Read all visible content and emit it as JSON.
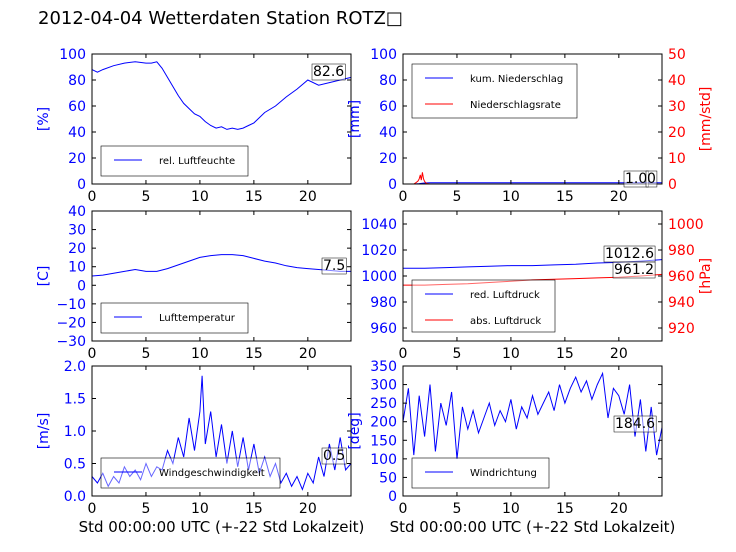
{
  "title": "2012-04-04 Wetterdaten Station ROTZ□",
  "colors": {
    "primary": "#0000ff",
    "secondary": "#ff0000",
    "axis": "#000000",
    "background": "#ffffff"
  },
  "chart_data": [
    {
      "type": "line",
      "xlabel": "",
      "ylabel": "[%]",
      "xlim": [
        0,
        24
      ],
      "ylim": [
        0,
        100
      ],
      "xticks": [
        0,
        5,
        10,
        15,
        20
      ],
      "yticks": [
        0,
        20,
        40,
        60,
        80,
        100
      ],
      "grid": false,
      "legend_position": "lower-left",
      "series": [
        {
          "name": "rel. Luftfeuchte",
          "color": "#0000ff",
          "x": [
            0,
            0.5,
            1,
            2,
            3,
            4,
            5,
            5.5,
            6,
            6.5,
            7,
            7.5,
            8,
            8.5,
            9,
            9.5,
            10,
            10.5,
            11,
            11.5,
            12,
            12.5,
            13,
            13.5,
            14,
            14.5,
            15,
            16,
            17,
            18,
            19,
            20,
            21,
            22,
            23,
            24
          ],
          "y": [
            88,
            86,
            88,
            91,
            93,
            94,
            93,
            93,
            94,
            89,
            82,
            75,
            68,
            62,
            58,
            54,
            52,
            48,
            45,
            43,
            44,
            42,
            43,
            42,
            43,
            45,
            47,
            55,
            60,
            67,
            73,
            80,
            76,
            78,
            80,
            82
          ]
        }
      ],
      "annotation": "82.6"
    },
    {
      "type": "line",
      "xlabel": "",
      "ylabel": "[mm]",
      "ylabel_right": "[mm/std]",
      "xlim": [
        0,
        24
      ],
      "ylim": [
        0,
        100
      ],
      "ylim_right": [
        0,
        50
      ],
      "xticks": [
        0,
        5,
        10,
        15,
        20
      ],
      "yticks": [
        0,
        20,
        40,
        60,
        80,
        100
      ],
      "yticks_right": [
        0,
        10,
        20,
        30,
        40,
        50
      ],
      "grid": false,
      "legend_position": "top-left",
      "series": [
        {
          "name": "kum. Niederschlag",
          "color": "#0000ff",
          "x": [
            0,
            1,
            1.5,
            2,
            2.5,
            3,
            10,
            20,
            24
          ],
          "y": [
            0,
            0,
            0.3,
            0.8,
            1,
            1,
            1,
            1,
            1
          ]
        },
        {
          "name": "Niederschlagsrate",
          "color": "#ff0000",
          "axis": "right",
          "x": [
            0,
            1,
            1.2,
            1.4,
            1.5,
            1.6,
            1.7,
            1.8,
            1.9,
            2.0,
            2.1,
            2.2,
            2.5,
            3,
            24
          ],
          "y": [
            0,
            0,
            0.5,
            1.2,
            2,
            3.5,
            1.5,
            4.5,
            2,
            1,
            0.5,
            0.2,
            0,
            0,
            0
          ]
        }
      ],
      "annotation": "1.0",
      "annotation_right": "0"
    },
    {
      "type": "line",
      "xlabel": "",
      "ylabel": "[C]",
      "xlim": [
        0,
        24
      ],
      "ylim": [
        -30,
        40
      ],
      "xticks": [
        0,
        5,
        10,
        15,
        20
      ],
      "yticks": [
        -30,
        -20,
        -10,
        0,
        10,
        20,
        30,
        40
      ],
      "grid": false,
      "legend_position": "lower-left",
      "series": [
        {
          "name": "Lufttemperatur",
          "color": "#0000ff",
          "x": [
            0,
            1,
            2,
            3,
            4,
            5,
            6,
            7,
            8,
            9,
            10,
            11,
            12,
            13,
            14,
            15,
            16,
            17,
            18,
            19,
            20,
            21,
            22,
            23,
            24
          ],
          "y": [
            5,
            5.5,
            6.5,
            7.5,
            8.5,
            7.5,
            7.5,
            9,
            11,
            13,
            15,
            16,
            16.5,
            16.5,
            16,
            14.5,
            13,
            12,
            10.5,
            9.5,
            9,
            8.5,
            8,
            7.5,
            7.5
          ]
        }
      ],
      "annotation": "7.5"
    },
    {
      "type": "line",
      "xlabel": "",
      "ylabel": "",
      "ylabel_right": "[hPa]",
      "xlim": [
        0,
        24
      ],
      "ylim": [
        950,
        1050
      ],
      "ylim_right": [
        910,
        1010
      ],
      "xticks": [
        0,
        5,
        10,
        15,
        20
      ],
      "yticks": [
        960,
        980,
        1000,
        1020,
        1040
      ],
      "yticks_right": [
        920,
        940,
        960,
        980,
        1000
      ],
      "grid": false,
      "legend_position": "lower-left",
      "series": [
        {
          "name": "red. Luftdruck",
          "color": "#0000ff",
          "x": [
            0,
            2,
            4,
            6,
            8,
            10,
            12,
            14,
            16,
            18,
            20,
            22,
            24
          ],
          "y": [
            1006,
            1006,
            1006.5,
            1007,
            1007.5,
            1008,
            1008,
            1008.5,
            1009,
            1010,
            1010.5,
            1011.5,
            1012.6
          ]
        },
        {
          "name": "abs. Luftdruck",
          "color": "#ff0000",
          "axis": "right",
          "x": [
            0,
            2,
            4,
            6,
            8,
            10,
            12,
            14,
            16,
            18,
            20,
            22,
            24
          ],
          "y": [
            953,
            953,
            953.5,
            954,
            955,
            956,
            957,
            957.5,
            958,
            958.5,
            959,
            960,
            961.2
          ]
        }
      ],
      "annotation": "1012.6",
      "annotation_right": "961.2"
    },
    {
      "type": "line",
      "xlabel": "Std 00:00:00 UTC (+-22 Std Lokalzeit)",
      "ylabel": "[m/s]",
      "xlim": [
        0,
        24
      ],
      "ylim": [
        0,
        2.0
      ],
      "xticks": [
        0,
        5,
        10,
        15,
        20
      ],
      "yticks": [
        0.0,
        0.5,
        1.0,
        1.5,
        2.0
      ],
      "grid": false,
      "legend_position": "lower-center",
      "series": [
        {
          "name": "Windgeschwindigkeit",
          "color": "#0000ff",
          "x": [
            0,
            0.5,
            1,
            1.5,
            2,
            2.5,
            3,
            3.5,
            4,
            4.5,
            5,
            5.5,
            6,
            6.5,
            7,
            7.5,
            8,
            8.5,
            9,
            9.5,
            10,
            10.2,
            10.5,
            11,
            11.5,
            12,
            12.5,
            13,
            13.5,
            14,
            14.5,
            15,
            15.5,
            16,
            16.5,
            17,
            17.5,
            18,
            18.5,
            19,
            19.5,
            20,
            20.5,
            21,
            21.5,
            22,
            22.5,
            23,
            23.5,
            24
          ],
          "y": [
            0.3,
            0.2,
            0.35,
            0.15,
            0.3,
            0.2,
            0.45,
            0.3,
            0.4,
            0.25,
            0.5,
            0.3,
            0.45,
            0.4,
            0.7,
            0.5,
            0.9,
            0.6,
            1.2,
            0.7,
            1.3,
            1.85,
            0.8,
            1.3,
            0.6,
            1.1,
            0.5,
            1.0,
            0.45,
            0.9,
            0.4,
            0.8,
            0.35,
            0.6,
            0.3,
            0.5,
            0.2,
            0.35,
            0.15,
            0.3,
            0.1,
            0.35,
            0.2,
            0.6,
            0.3,
            0.8,
            0.4,
            0.9,
            0.4,
            0.5
          ]
        }
      ],
      "annotation": "0.5"
    },
    {
      "type": "line",
      "xlabel": "Std 00:00:00 UTC (+-22 Std Lokalzeit)",
      "ylabel": "[deg]",
      "xlim": [
        0,
        24
      ],
      "ylim": [
        0,
        350
      ],
      "xticks": [
        0,
        5,
        10,
        15,
        20
      ],
      "yticks": [
        0,
        50,
        100,
        150,
        200,
        250,
        300,
        350
      ],
      "grid": false,
      "legend_position": "lower-left",
      "series": [
        {
          "name": "Windrichtung",
          "color": "#0000ff",
          "x": [
            0,
            0.5,
            1,
            1.5,
            2,
            2.5,
            3,
            3.5,
            4,
            4.5,
            5,
            5.5,
            6,
            6.5,
            7,
            7.5,
            8,
            8.5,
            9,
            9.5,
            10,
            10.5,
            11,
            11.5,
            12,
            12.5,
            13,
            13.5,
            14,
            14.5,
            15,
            15.5,
            16,
            16.5,
            17,
            17.5,
            18,
            18.5,
            19,
            19.5,
            20,
            20.5,
            21,
            21.5,
            22,
            22.5,
            23,
            23.5,
            24
          ],
          "y": [
            200,
            290,
            110,
            270,
            160,
            300,
            120,
            250,
            190,
            280,
            100,
            240,
            180,
            230,
            170,
            210,
            250,
            190,
            230,
            200,
            260,
            180,
            240,
            210,
            270,
            220,
            250,
            280,
            230,
            300,
            250,
            290,
            320,
            280,
            310,
            260,
            300,
            330,
            210,
            290,
            270,
            220,
            300,
            160,
            260,
            120,
            240,
            110,
            185
          ]
        }
      ],
      "annotation": "184.6"
    }
  ]
}
